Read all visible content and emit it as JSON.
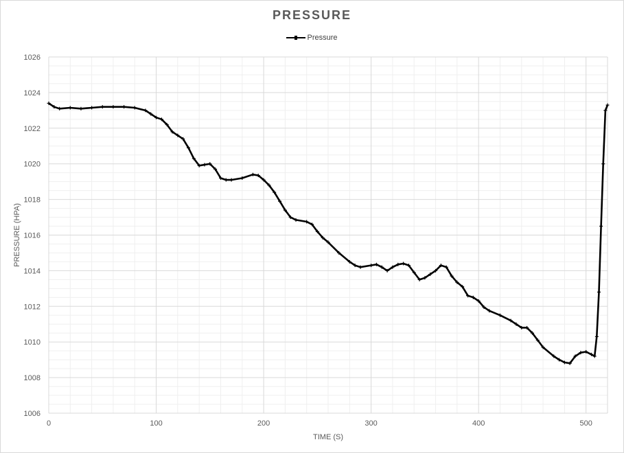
{
  "chart_data": {
    "type": "line",
    "title": "PRESSURE",
    "xlabel": "TIME (S)",
    "ylabel": "PRESSURE (HPA)",
    "xlim": [
      0,
      520
    ],
    "ylim": [
      1006,
      1026
    ],
    "x_ticks": [
      0,
      100,
      200,
      300,
      400,
      500
    ],
    "y_ticks": [
      1006,
      1008,
      1010,
      1012,
      1014,
      1016,
      1018,
      1020,
      1022,
      1024,
      1026
    ],
    "grid": true,
    "legend_position": "top-center",
    "series": [
      {
        "name": "Pressure",
        "color": "#000000",
        "marker": "plus",
        "x": [
          0,
          5,
          10,
          20,
          30,
          40,
          50,
          60,
          70,
          80,
          90,
          95,
          100,
          105,
          110,
          115,
          120,
          125,
          130,
          135,
          140,
          145,
          150,
          155,
          160,
          165,
          170,
          180,
          190,
          195,
          200,
          205,
          210,
          215,
          220,
          225,
          230,
          240,
          245,
          250,
          255,
          260,
          270,
          280,
          285,
          290,
          300,
          305,
          310,
          315,
          320,
          325,
          330,
          335,
          340,
          345,
          350,
          355,
          360,
          365,
          370,
          375,
          380,
          385,
          390,
          395,
          400,
          405,
          410,
          420,
          430,
          435,
          440,
          445,
          450,
          455,
          460,
          470,
          475,
          480,
          485,
          490,
          495,
          500,
          505,
          508,
          510,
          512,
          514,
          516,
          518,
          520
        ],
        "values": [
          1023.4,
          1023.2,
          1023.1,
          1023.15,
          1023.1,
          1023.15,
          1023.2,
          1023.2,
          1023.2,
          1023.15,
          1023.0,
          1022.8,
          1022.6,
          1022.5,
          1022.2,
          1021.8,
          1021.6,
          1021.4,
          1020.9,
          1020.3,
          1019.9,
          1019.95,
          1020.0,
          1019.7,
          1019.2,
          1019.1,
          1019.1,
          1019.2,
          1019.4,
          1019.35,
          1019.1,
          1018.8,
          1018.4,
          1017.9,
          1017.4,
          1017.0,
          1016.85,
          1016.75,
          1016.6,
          1016.2,
          1015.85,
          1015.6,
          1015.0,
          1014.5,
          1014.3,
          1014.2,
          1014.3,
          1014.35,
          1014.2,
          1014.0,
          1014.2,
          1014.35,
          1014.4,
          1014.3,
          1013.9,
          1013.5,
          1013.6,
          1013.8,
          1014.0,
          1014.3,
          1014.2,
          1013.7,
          1013.35,
          1013.1,
          1012.6,
          1012.5,
          1012.3,
          1011.95,
          1011.75,
          1011.5,
          1011.2,
          1011.0,
          1010.8,
          1010.8,
          1010.5,
          1010.1,
          1009.7,
          1009.2,
          1009.0,
          1008.85,
          1008.8,
          1009.2,
          1009.4,
          1009.45,
          1009.3,
          1009.2,
          1010.3,
          1012.8,
          1016.5,
          1020.0,
          1023.0,
          1023.3
        ]
      }
    ]
  }
}
